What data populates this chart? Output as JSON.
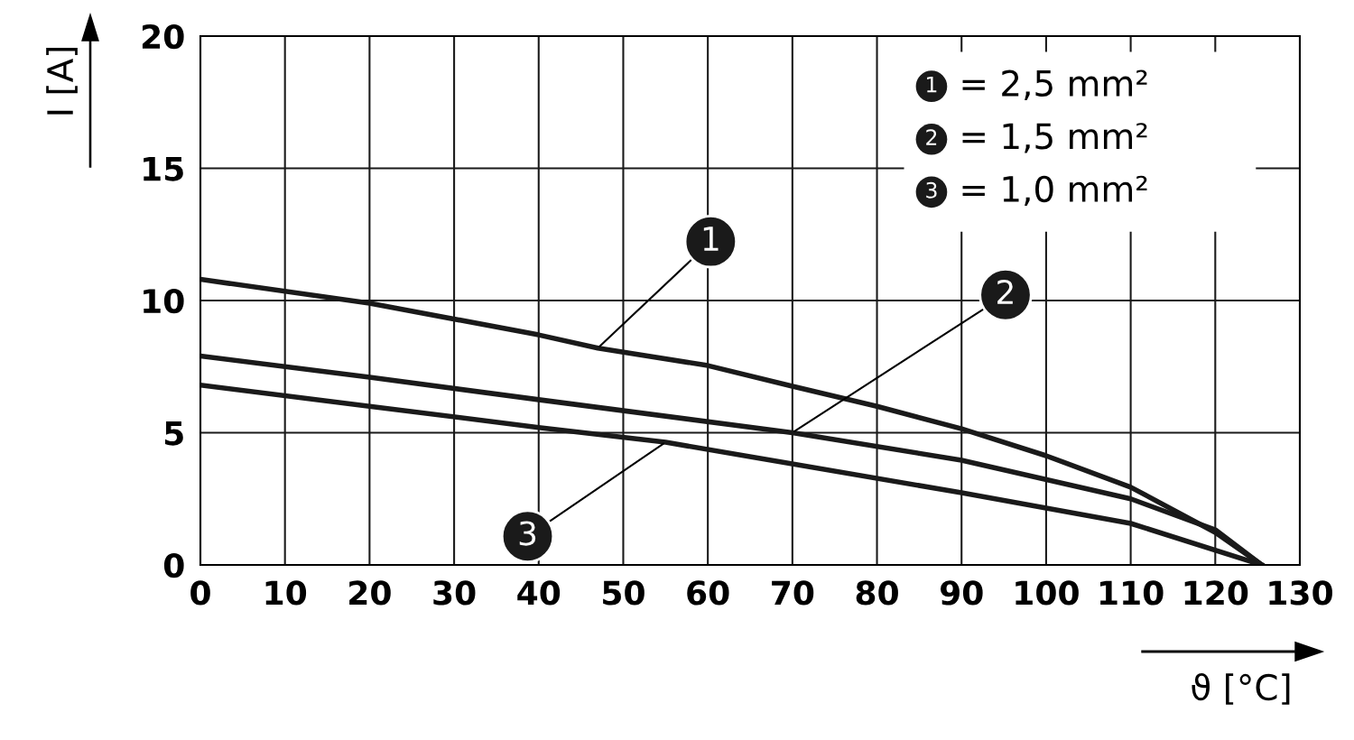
{
  "chart_data": {
    "type": "line",
    "xlabel": "ϑ [°C]",
    "ylabel": "I [A]",
    "xlim": [
      0,
      130
    ],
    "ylim": [
      0,
      20
    ],
    "xticks": [
      0,
      10,
      20,
      30,
      40,
      50,
      60,
      70,
      80,
      90,
      100,
      110,
      120,
      130
    ],
    "yticks": [
      0,
      5,
      10,
      15,
      20
    ],
    "grid": true,
    "legend": false,
    "marker": "none",
    "line_style": "solid",
    "series": [
      {
        "color": "#1a1a1a",
        "x": [
          0,
          20,
          40,
          47,
          60,
          70,
          80,
          90,
          100,
          110,
          120,
          125.5
        ],
        "values": [
          10.8,
          9.9,
          8.7,
          8.2,
          7.54,
          6.76,
          6.0,
          5.15,
          4.13,
          2.94,
          1.23,
          0
        ]
      },
      {
        "color": "#1a1a1a",
        "x": [
          0,
          20,
          40,
          70,
          90,
          110,
          120,
          125.5
        ],
        "values": [
          7.9,
          7.1,
          6.25,
          5.0,
          3.96,
          2.5,
          1.33,
          0
        ]
      },
      {
        "color": "#1a1a1a",
        "x": [
          0,
          20,
          40,
          55,
          90,
          110,
          125.5
        ],
        "values": [
          6.8,
          6.0,
          5.2,
          4.64,
          2.73,
          1.57,
          0
        ]
      }
    ],
    "annotations": [
      {
        "text": "1",
        "x": 47,
        "y": 8.2
      },
      {
        "text": "2",
        "x": 70,
        "y": 5.0
      },
      {
        "text": "3",
        "x": 55,
        "y": 4.64
      },
      "= 2,5 mm²",
      "= 1,5 mm²",
      "= 1,0 mm²"
    ]
  }
}
